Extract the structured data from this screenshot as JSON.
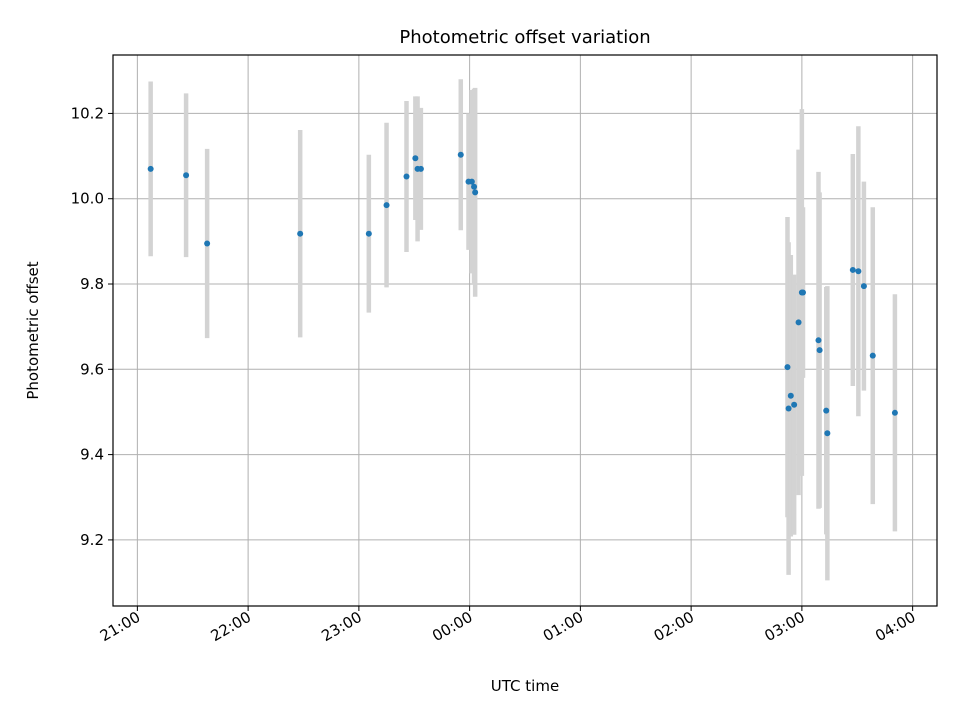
{
  "chart_data": {
    "type": "scatter",
    "title": "Photometric offset variation",
    "xlabel": "UTC time",
    "ylabel": "Photometric offset",
    "x_unit": "hours",
    "x_ticks": [
      {
        "value": 21,
        "label": "21:00"
      },
      {
        "value": 22,
        "label": "22:00"
      },
      {
        "value": 23,
        "label": "23:00"
      },
      {
        "value": 24,
        "label": "00:00"
      },
      {
        "value": 25,
        "label": "01:00"
      },
      {
        "value": 26,
        "label": "02:00"
      },
      {
        "value": 27,
        "label": "03:00"
      },
      {
        "value": 28,
        "label": "04:00"
      }
    ],
    "y_ticks": [
      {
        "value": 9.2,
        "label": "9.2"
      },
      {
        "value": 9.4,
        "label": "9.4"
      },
      {
        "value": 9.6,
        "label": "9.6"
      },
      {
        "value": 9.8,
        "label": "9.8"
      },
      {
        "value": 10.0,
        "label": "10.0"
      },
      {
        "value": 10.2,
        "label": "10.2"
      }
    ],
    "xlim": [
      20.78,
      28.22
    ],
    "ylim": [
      9.045,
      10.337
    ],
    "grid": true,
    "colors": {
      "marker": "#1f77b4",
      "errorbar": "#d3d3d3",
      "grid": "#b0b0b0"
    },
    "points": [
      {
        "x": 21.12,
        "y": 10.07,
        "err": 0.205
      },
      {
        "x": 21.44,
        "y": 10.055,
        "err": 0.192
      },
      {
        "x": 21.63,
        "y": 9.895,
        "err": 0.222
      },
      {
        "x": 22.47,
        "y": 9.918,
        "err": 0.243
      },
      {
        "x": 23.09,
        "y": 9.918,
        "err": 0.185
      },
      {
        "x": 23.25,
        "y": 9.985,
        "err": 0.193
      },
      {
        "x": 23.43,
        "y": 10.052,
        "err": 0.177
      },
      {
        "x": 23.51,
        "y": 10.095,
        "err": 0.145
      },
      {
        "x": 23.53,
        "y": 10.07,
        "err": 0.17
      },
      {
        "x": 23.56,
        "y": 10.07,
        "err": 0.143
      },
      {
        "x": 23.92,
        "y": 10.103,
        "err": 0.177
      },
      {
        "x": 23.99,
        "y": 10.04,
        "err": 0.16
      },
      {
        "x": 24.02,
        "y": 10.04,
        "err": 0.215
      },
      {
        "x": 24.04,
        "y": 10.028,
        "err": 0.23
      },
      {
        "x": 24.05,
        "y": 10.015,
        "err": 0.245
      },
      {
        "x": 26.87,
        "y": 9.605,
        "err": 0.352
      },
      {
        "x": 26.88,
        "y": 9.508,
        "err": 0.39
      },
      {
        "x": 26.9,
        "y": 9.538,
        "err": 0.33
      },
      {
        "x": 26.93,
        "y": 9.517,
        "err": 0.305
      },
      {
        "x": 26.97,
        "y": 9.71,
        "err": 0.405
      },
      {
        "x": 27.0,
        "y": 9.78,
        "err": 0.43
      },
      {
        "x": 27.01,
        "y": 9.78,
        "err": 0.2
      },
      {
        "x": 27.15,
        "y": 9.668,
        "err": 0.395
      },
      {
        "x": 27.16,
        "y": 9.645,
        "err": 0.37
      },
      {
        "x": 27.22,
        "y": 9.503,
        "err": 0.29
      },
      {
        "x": 27.23,
        "y": 9.45,
        "err": 0.345
      },
      {
        "x": 27.46,
        "y": 9.833,
        "err": 0.272
      },
      {
        "x": 27.51,
        "y": 9.83,
        "err": 0.34
      },
      {
        "x": 27.56,
        "y": 9.795,
        "err": 0.245
      },
      {
        "x": 27.64,
        "y": 9.632,
        "err": 0.348
      },
      {
        "x": 27.84,
        "y": 9.498,
        "err": 0.278
      }
    ]
  }
}
